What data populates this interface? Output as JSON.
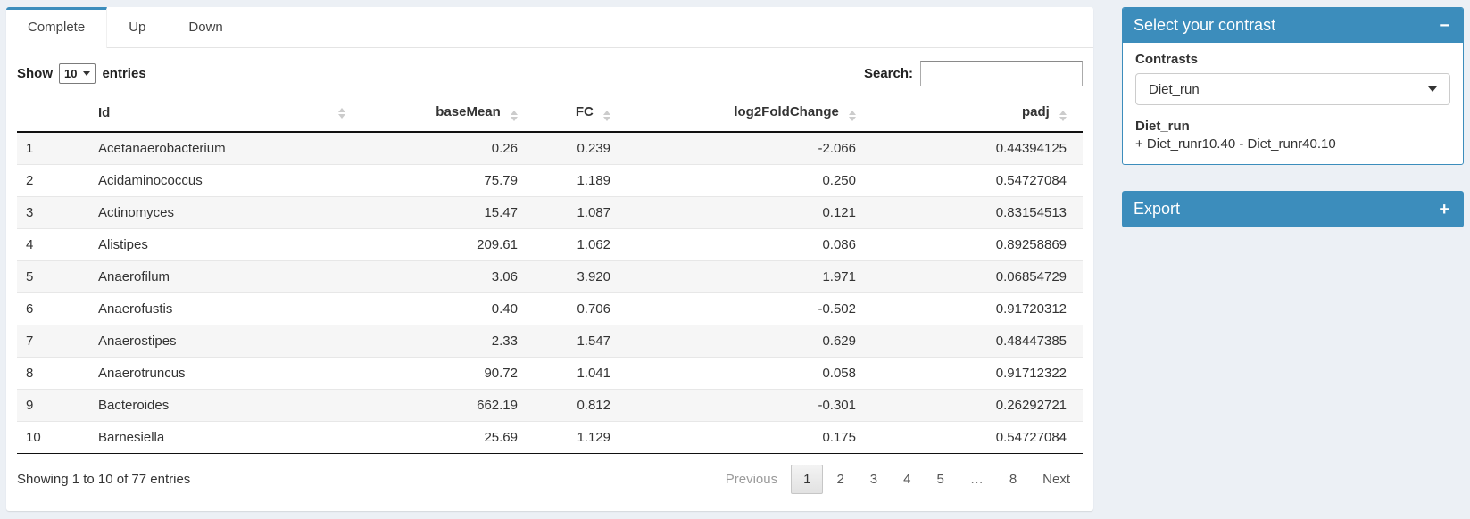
{
  "colors": {
    "accent": "#3c8dbc",
    "page_bg": "#ecf0f5"
  },
  "tabs": [
    {
      "label": "Complete",
      "active": true
    },
    {
      "label": "Up",
      "active": false
    },
    {
      "label": "Down",
      "active": false
    }
  ],
  "table_controls": {
    "show_label": "Show",
    "page_size": "10",
    "entries_label": "entries",
    "search_label": "Search:",
    "search_value": ""
  },
  "table": {
    "columns": [
      {
        "label": "Id"
      },
      {
        "label": "baseMean"
      },
      {
        "label": "FC"
      },
      {
        "label": "log2FoldChange"
      },
      {
        "label": "padj"
      }
    ],
    "rows": [
      {
        "index": "1",
        "id": "Acetanaerobacterium",
        "baseMean": "0.26",
        "fc": "0.239",
        "log2fc": "-2.066",
        "padj": "0.44394125"
      },
      {
        "index": "2",
        "id": "Acidaminococcus",
        "baseMean": "75.79",
        "fc": "1.189",
        "log2fc": "0.250",
        "padj": "0.54727084"
      },
      {
        "index": "3",
        "id": "Actinomyces",
        "baseMean": "15.47",
        "fc": "1.087",
        "log2fc": "0.121",
        "padj": "0.83154513"
      },
      {
        "index": "4",
        "id": "Alistipes",
        "baseMean": "209.61",
        "fc": "1.062",
        "log2fc": "0.086",
        "padj": "0.89258869"
      },
      {
        "index": "5",
        "id": "Anaerofilum",
        "baseMean": "3.06",
        "fc": "3.920",
        "log2fc": "1.971",
        "padj": "0.06854729"
      },
      {
        "index": "6",
        "id": "Anaerofustis",
        "baseMean": "0.40",
        "fc": "0.706",
        "log2fc": "-0.502",
        "padj": "0.91720312"
      },
      {
        "index": "7",
        "id": "Anaerostipes",
        "baseMean": "2.33",
        "fc": "1.547",
        "log2fc": "0.629",
        "padj": "0.48447385"
      },
      {
        "index": "8",
        "id": "Anaerotruncus",
        "baseMean": "90.72",
        "fc": "1.041",
        "log2fc": "0.058",
        "padj": "0.91712322"
      },
      {
        "index": "9",
        "id": "Bacteroides",
        "baseMean": "662.19",
        "fc": "0.812",
        "log2fc": "-0.301",
        "padj": "0.26292721"
      },
      {
        "index": "10",
        "id": "Barnesiella",
        "baseMean": "25.69",
        "fc": "1.129",
        "log2fc": "0.175",
        "padj": "0.54727084"
      }
    ]
  },
  "table_footer": {
    "info": "Showing 1 to 10 of 77 entries",
    "pagination": {
      "previous": "Previous",
      "pages": [
        "1",
        "2",
        "3",
        "4",
        "5",
        "…",
        "8"
      ],
      "current": "1",
      "next": "Next"
    }
  },
  "contrast_panel": {
    "title": "Select your contrast",
    "contrasts_label": "Contrasts",
    "selected_contrast": "Diet_run",
    "contrast_name": "Diet_run",
    "contrast_formula": "+ Diet_runr10.40 - Diet_runr40.10"
  },
  "export_panel": {
    "title": "Export"
  },
  "icons": {
    "collapse": "−",
    "expand": "+"
  }
}
